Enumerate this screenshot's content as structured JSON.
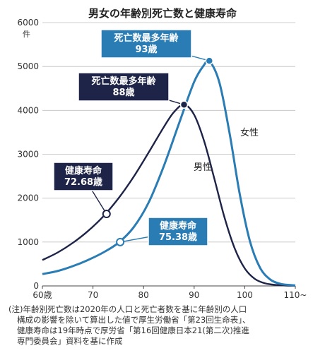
{
  "chart_data": {
    "type": "line",
    "title": "男女の年齢別死亡数と健康寿命",
    "ylabel": "件",
    "ylim": [
      0,
      6000
    ],
    "xlim": [
      60,
      110
    ],
    "yticks": [
      "0",
      "1000",
      "2000",
      "3000",
      "4000",
      "5000",
      "6000"
    ],
    "xticks": [
      {
        "value": 60,
        "label": "60歳"
      },
      {
        "value": 70,
        "label": "70"
      },
      {
        "value": 80,
        "label": "80"
      },
      {
        "value": 90,
        "label": "90"
      },
      {
        "value": 100,
        "label": "100"
      },
      {
        "value": 110,
        "label": "110~"
      }
    ],
    "grid": true,
    "series": [
      {
        "name": "男性",
        "color": "#1e2448",
        "x": [
          60,
          63,
          66,
          69,
          72,
          75,
          78,
          81,
          84,
          86,
          88,
          90,
          92,
          94,
          96,
          98,
          100,
          102,
          104,
          106,
          108,
          110
        ],
        "values": [
          590,
          760,
          980,
          1250,
          1580,
          1990,
          2480,
          3040,
          3620,
          3960,
          4130,
          3900,
          3290,
          2440,
          1560,
          860,
          400,
          160,
          60,
          25,
          10,
          5
        ]
      },
      {
        "name": "女性",
        "color": "#2a7cb5",
        "x": [
          60,
          63,
          66,
          69,
          72,
          75,
          78,
          81,
          84,
          87,
          90,
          92,
          93,
          95,
          97,
          99,
          101,
          103,
          105,
          107,
          109,
          110
        ],
        "values": [
          270,
          340,
          450,
          590,
          760,
          980,
          1330,
          1900,
          2730,
          3700,
          4650,
          5040,
          5130,
          4630,
          3480,
          2100,
          1030,
          420,
          150,
          50,
          20,
          10
        ]
      }
    ],
    "markers": [
      {
        "series": "男性",
        "x": 72.68,
        "value": 1640,
        "style": "open",
        "color": "#1e2448"
      },
      {
        "series": "女性",
        "x": 75.38,
        "value": 1000,
        "style": "open",
        "color": "#2a7cb5"
      },
      {
        "series": "男性",
        "x": 88,
        "value": 4130,
        "style": "filled",
        "color": "#1e2448"
      },
      {
        "series": "女性",
        "x": 93,
        "value": 5130,
        "style": "filled",
        "color": "#2a7cb5"
      }
    ],
    "annotations": [
      {
        "lines": [
          "健康寿命",
          "72.68歳"
        ],
        "box_color": "#1e2448",
        "target_marker": 0
      },
      {
        "lines": [
          "健康寿命",
          "75.38歳"
        ],
        "box_color": "#2a7cb5",
        "target_marker": 1
      },
      {
        "lines": [
          "死亡数最多年齢",
          "88歳"
        ],
        "box_color": "#1e2448",
        "target_marker": 2
      },
      {
        "lines": [
          "死亡数最多年齢",
          "93歳"
        ],
        "box_color": "#2a7cb5",
        "target_marker": 3
      }
    ],
    "series_labels": [
      {
        "text": "女性",
        "series": "女性"
      },
      {
        "text": "男性",
        "series": "男性"
      }
    ]
  },
  "footnote": {
    "lines": [
      "(注)年齢別死亡数は2020年の人口と死亡者数を基に年齢別の人口",
      "構成の影響を除いて算出した値で厚生労働省「第23回生命表」、",
      "健康寿命は19年時点で厚労省「第16回健康日本21(第二次)推進",
      "専門委員会」資料を基に作成"
    ]
  }
}
